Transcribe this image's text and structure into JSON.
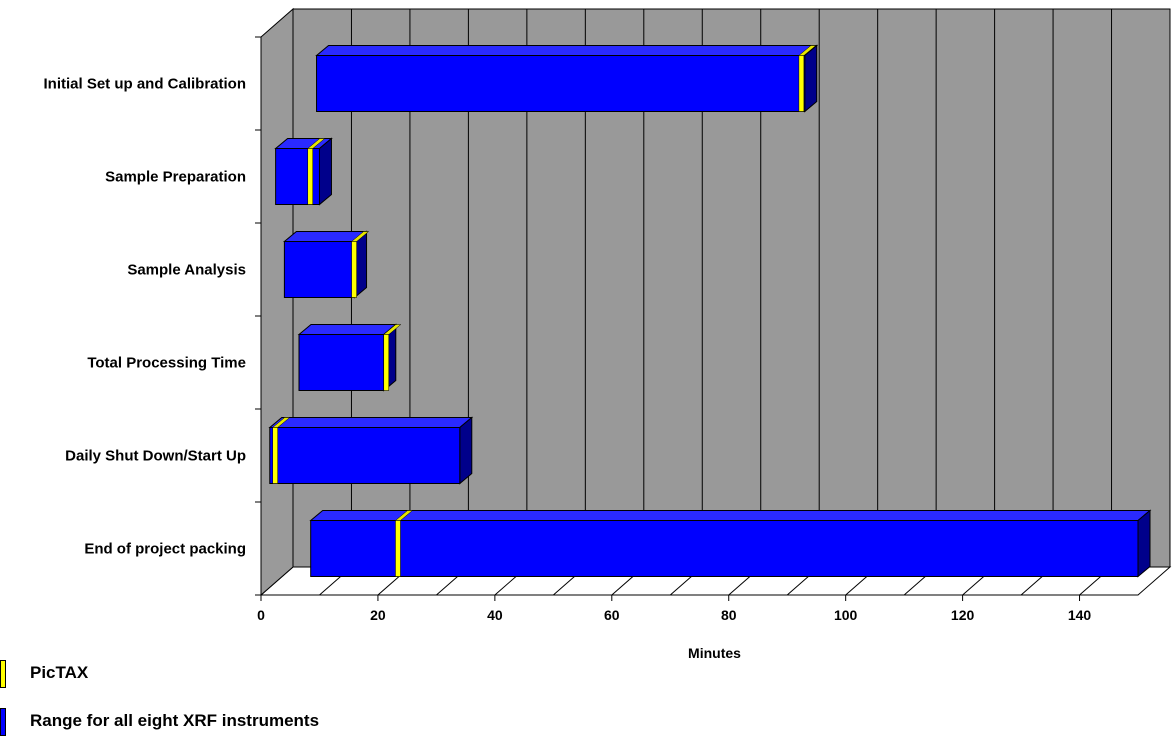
{
  "chart_data": {
    "type": "bar",
    "orientation": "horizontal",
    "style": "3d-floating-range",
    "categories": [
      "Initial Set up and Calibration",
      "Sample Preparation",
      "Sample Analysis",
      "Total Processing Time",
      "Daily Shut Down/Start Up",
      "End of project packing"
    ],
    "series": [
      {
        "name": "Range for all eight XRF instruments",
        "color": "#0000ff",
        "ranges": [
          [
            9.5,
            93
          ],
          [
            2.5,
            10
          ],
          [
            4,
            16
          ],
          [
            6.5,
            21
          ],
          [
            1.5,
            34
          ],
          [
            8.5,
            150
          ]
        ]
      },
      {
        "name": "PicTAX",
        "color": "#ffff00",
        "values": [
          92,
          8,
          15.5,
          21,
          2,
          23
        ]
      }
    ],
    "xlabel": "Minutes",
    "ylabel": "",
    "xlim": [
      0,
      150
    ],
    "xticks": [
      0,
      20,
      40,
      60,
      80,
      100,
      120,
      140
    ],
    "grid": true,
    "legend_position": "bottom-left"
  },
  "legend": {
    "items": [
      {
        "label": "PicTAX",
        "color": "#ffff00"
      },
      {
        "label": "Range for all eight XRF instruments",
        "color": "#0000ff"
      }
    ]
  }
}
